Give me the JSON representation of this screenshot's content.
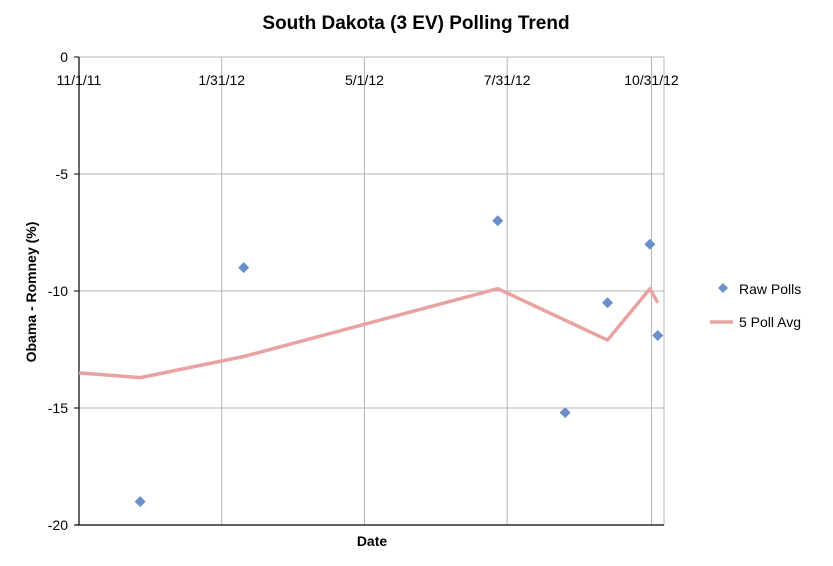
{
  "chart_data": {
    "type": "scatter",
    "title": "South Dakota (3 EV) Polling Trend",
    "xlabel": "Date",
    "ylabel": "Obama - Romney (%)",
    "ylim": [
      -20,
      0
    ],
    "yticks": [
      0,
      -5,
      -10,
      -15,
      -20
    ],
    "xlim": [
      "2011-11-01",
      "2012-11-08"
    ],
    "xticks": [
      "11/1/11",
      "1/31/12",
      "5/1/12",
      "7/31/12",
      "10/31/12"
    ],
    "xtick_dates": [
      "2011-11-01",
      "2012-01-31",
      "2012-05-01",
      "2012-07-31",
      "2012-10-31"
    ],
    "grid": true,
    "legend_position": "right",
    "series": [
      {
        "name": "Raw Polls",
        "kind": "scatter",
        "marker": "diamond",
        "color": "#6a8fcb",
        "x": [
          "2011-12-10",
          "2012-02-14",
          "2012-07-25",
          "2012-09-06",
          "2012-10-03",
          "2012-10-30",
          "2012-11-04"
        ],
        "y": [
          -19.0,
          -9.0,
          -7.0,
          -15.2,
          -10.5,
          -8.0,
          -11.9
        ]
      },
      {
        "name": "5 Poll Avg",
        "kind": "line",
        "color": "#e8a3a0",
        "x": [
          "2011-11-01",
          "2011-12-10",
          "2012-02-14",
          "2012-07-25",
          "2012-10-03",
          "2012-10-30",
          "2012-11-04"
        ],
        "y": [
          -13.5,
          -13.7,
          -12.8,
          -9.9,
          -12.1,
          -9.9,
          -10.5
        ]
      }
    ]
  }
}
